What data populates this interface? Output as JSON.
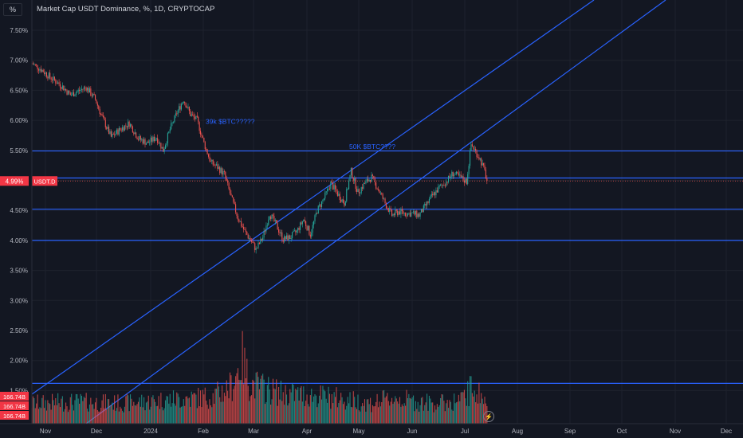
{
  "chart_info": {
    "percent_button": "%",
    "title": "Market Cap USDT Dominance, %, 1D, CRYPTOCAP"
  },
  "chart_data": {
    "type": "candlestick",
    "title": "Market Cap USDT Dominance, %, 1D, CRYPTOCAP",
    "y_ticks": [
      "7.50%",
      "7.00%",
      "6.50%",
      "6.00%",
      "5.50%",
      "5.00%",
      "4.50%",
      "4.00%",
      "3.50%",
      "3.00%",
      "2.50%",
      "2.00%",
      "1.50%"
    ],
    "y_values": [
      7.5,
      7.0,
      6.5,
      6.0,
      5.5,
      5.0,
      4.5,
      4.0,
      3.5,
      3.0,
      2.5,
      2.0,
      1.5
    ],
    "x_ticks": [
      "Nov",
      "Dec",
      "2024",
      "Feb",
      "Mar",
      "Apr",
      "May",
      "Jun",
      "Jul",
      "Aug",
      "Sep",
      "Oct",
      "Nov",
      "Dec"
    ],
    "current_price_label": "4.99%",
    "symbol_label": "USDT.D",
    "volume_labels": [
      "166.74B",
      "166.74B",
      "166.74B"
    ],
    "horizontal_levels": [
      5.49,
      5.04,
      4.52,
      4.0,
      1.62
    ],
    "annotations": [
      {
        "text": "39k $BTC?????",
        "value": 5.97
      },
      {
        "text": "50K $BTC????",
        "value": 5.55
      }
    ],
    "colors": {
      "up": "#26a69a",
      "down": "#ef5350",
      "lines": "#2962ff",
      "background": "#131722",
      "grid": "#1e222d",
      "label_bg": "#f23645"
    },
    "price_path_keypoints": [
      [
        0,
        6.95
      ],
      [
        8,
        6.85
      ],
      [
        16,
        6.72
      ],
      [
        26,
        6.58
      ],
      [
        34,
        6.42
      ],
      [
        40,
        6.48
      ],
      [
        48,
        6.55
      ],
      [
        56,
        6.35
      ],
      [
        62,
        6.05
      ],
      [
        70,
        5.72
      ],
      [
        78,
        5.85
      ],
      [
        86,
        5.95
      ],
      [
        94,
        5.7
      ],
      [
        102,
        5.62
      ],
      [
        110,
        5.72
      ],
      [
        116,
        5.5
      ],
      [
        122,
        5.85
      ],
      [
        128,
        6.12
      ],
      [
        134,
        6.35
      ],
      [
        140,
        6.1
      ],
      [
        146,
        6.0
      ],
      [
        152,
        5.62
      ],
      [
        158,
        5.3
      ],
      [
        164,
        5.22
      ],
      [
        170,
        5.1
      ],
      [
        176,
        4.72
      ],
      [
        182,
        4.38
      ],
      [
        188,
        4.15
      ],
      [
        194,
        3.98
      ],
      [
        198,
        3.85
      ],
      [
        204,
        4.05
      ],
      [
        210,
        4.45
      ],
      [
        216,
        4.25
      ],
      [
        222,
        4.02
      ],
      [
        228,
        4.05
      ],
      [
        234,
        4.15
      ],
      [
        240,
        4.35
      ],
      [
        246,
        4.1
      ],
      [
        252,
        4.5
      ],
      [
        258,
        4.7
      ],
      [
        264,
        4.95
      ],
      [
        270,
        4.78
      ],
      [
        276,
        4.62
      ],
      [
        282,
        5.15
      ],
      [
        288,
        4.8
      ],
      [
        294,
        4.95
      ],
      [
        300,
        5.05
      ],
      [
        306,
        4.85
      ],
      [
        312,
        4.62
      ],
      [
        318,
        4.42
      ],
      [
        324,
        4.48
      ],
      [
        330,
        4.45
      ],
      [
        336,
        4.45
      ],
      [
        342,
        4.42
      ],
      [
        348,
        4.58
      ],
      [
        354,
        4.75
      ],
      [
        360,
        4.88
      ],
      [
        366,
        4.98
      ],
      [
        372,
        5.12
      ],
      [
        378,
        5.05
      ],
      [
        384,
        4.98
      ],
      [
        388,
        5.6
      ],
      [
        392,
        5.48
      ],
      [
        396,
        5.35
      ],
      [
        400,
        5.15
      ],
      [
        402,
        4.99
      ]
    ],
    "volume_profile": [
      [
        0,
        0.3
      ],
      [
        40,
        0.32
      ],
      [
        80,
        0.3
      ],
      [
        120,
        0.35
      ],
      [
        160,
        0.4
      ],
      [
        176,
        0.55
      ],
      [
        186,
        0.95
      ],
      [
        192,
        0.6
      ],
      [
        200,
        0.55
      ],
      [
        220,
        0.45
      ],
      [
        260,
        0.4
      ],
      [
        280,
        0.35
      ],
      [
        300,
        0.3
      ],
      [
        320,
        0.38
      ],
      [
        340,
        0.32
      ],
      [
        360,
        0.3
      ],
      [
        380,
        0.35
      ],
      [
        390,
        0.55
      ],
      [
        402,
        0.3
      ]
    ]
  }
}
